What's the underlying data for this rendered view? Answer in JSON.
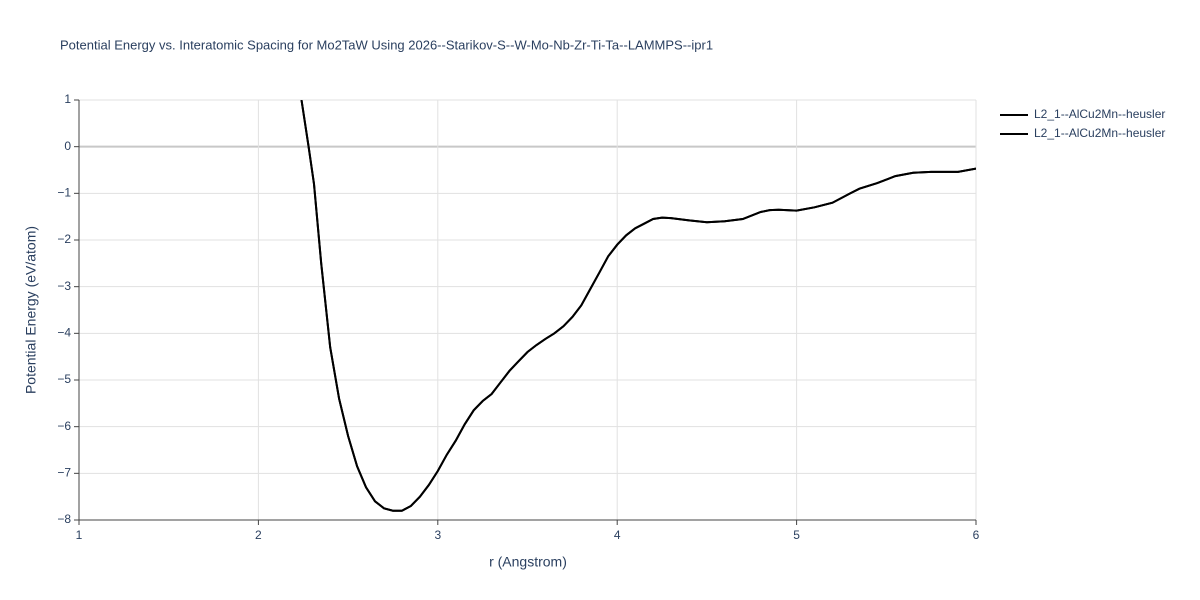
{
  "chart_data": {
    "type": "line",
    "title": "Potential Energy vs. Interatomic Spacing for Mo2TaW Using 2026--Starikov-S--W-Mo-Nb-Zr-Ti-Ta--LAMMPS--ipr1",
    "x_label": "r (Angstrom)",
    "y_label": "Potential Energy (eV/atom)",
    "x": [
      2.24,
      2.28,
      2.31,
      2.35,
      2.4,
      2.45,
      2.5,
      2.55,
      2.6,
      2.65,
      2.7,
      2.75,
      2.8,
      2.85,
      2.9,
      2.95,
      3.0,
      3.05,
      3.1,
      3.15,
      3.2,
      3.25,
      3.3,
      3.35,
      3.4,
      3.45,
      3.5,
      3.55,
      3.6,
      3.65,
      3.7,
      3.75,
      3.8,
      3.85,
      3.9,
      3.95,
      4.0,
      4.05,
      4.1,
      4.15,
      4.2,
      4.25,
      4.3,
      4.4,
      4.5,
      4.6,
      4.7,
      4.8,
      4.85,
      4.9,
      5.0,
      5.1,
      5.2,
      5.3,
      5.35,
      5.45,
      5.55,
      5.65,
      5.75,
      5.9,
      6.0
    ],
    "series": [
      {
        "name": "L2_1--AlCu2Mn--heusler",
        "color": "#000000",
        "values": [
          1.0,
          0.0,
          -0.8,
          -2.5,
          -4.3,
          -5.4,
          -6.2,
          -6.85,
          -7.3,
          -7.6,
          -7.75,
          -7.8,
          -7.8,
          -7.7,
          -7.5,
          -7.25,
          -6.95,
          -6.6,
          -6.3,
          -5.95,
          -5.65,
          -5.45,
          -5.3,
          -5.05,
          -4.8,
          -4.6,
          -4.4,
          -4.25,
          -4.12,
          -4.0,
          -3.85,
          -3.65,
          -3.4,
          -3.05,
          -2.7,
          -2.35,
          -2.1,
          -1.9,
          -1.75,
          -1.65,
          -1.55,
          -1.52,
          -1.53,
          -1.58,
          -1.62,
          -1.6,
          -1.55,
          -1.4,
          -1.36,
          -1.35,
          -1.37,
          -1.3,
          -1.2,
          -1.0,
          -0.9,
          -0.78,
          -0.63,
          -0.56,
          -0.54,
          -0.54,
          -0.47
        ]
      },
      {
        "name": "L2_1--AlCu2Mn--heusler",
        "color": "#000000",
        "values": [
          1.0,
          0.0,
          -0.8,
          -2.5,
          -4.3,
          -5.4,
          -6.2,
          -6.85,
          -7.3,
          -7.6,
          -7.75,
          -7.8,
          -7.8,
          -7.7,
          -7.5,
          -7.25,
          -6.95,
          -6.6,
          -6.3,
          -5.95,
          -5.65,
          -5.45,
          -5.3,
          -5.05,
          -4.8,
          -4.6,
          -4.4,
          -4.25,
          -4.12,
          -4.0,
          -3.85,
          -3.65,
          -3.4,
          -3.05,
          -2.7,
          -2.35,
          -2.1,
          -1.9,
          -1.75,
          -1.65,
          -1.55,
          -1.52,
          -1.53,
          -1.58,
          -1.62,
          -1.6,
          -1.55,
          -1.4,
          -1.36,
          -1.35,
          -1.37,
          -1.3,
          -1.2,
          -1.0,
          -0.9,
          -0.78,
          -0.63,
          -0.56,
          -0.54,
          -0.54,
          -0.47
        ]
      }
    ],
    "xlim": [
      1,
      6
    ],
    "xticks": [
      1,
      2,
      3,
      4,
      5,
      6
    ],
    "ylim": [
      -8,
      1
    ],
    "yticks": [
      1,
      0,
      {
        "value": -1,
        "label": "−1"
      },
      {
        "value": -2,
        "label": "−2"
      },
      {
        "value": -3,
        "label": "−3"
      },
      {
        "value": -4,
        "label": "−4"
      },
      {
        "value": -5,
        "label": "−5"
      },
      {
        "value": -6,
        "label": "−6"
      },
      {
        "value": -7,
        "label": "−7"
      },
      {
        "value": -8,
        "label": "−8"
      }
    ],
    "grid": true,
    "legend": "right"
  }
}
